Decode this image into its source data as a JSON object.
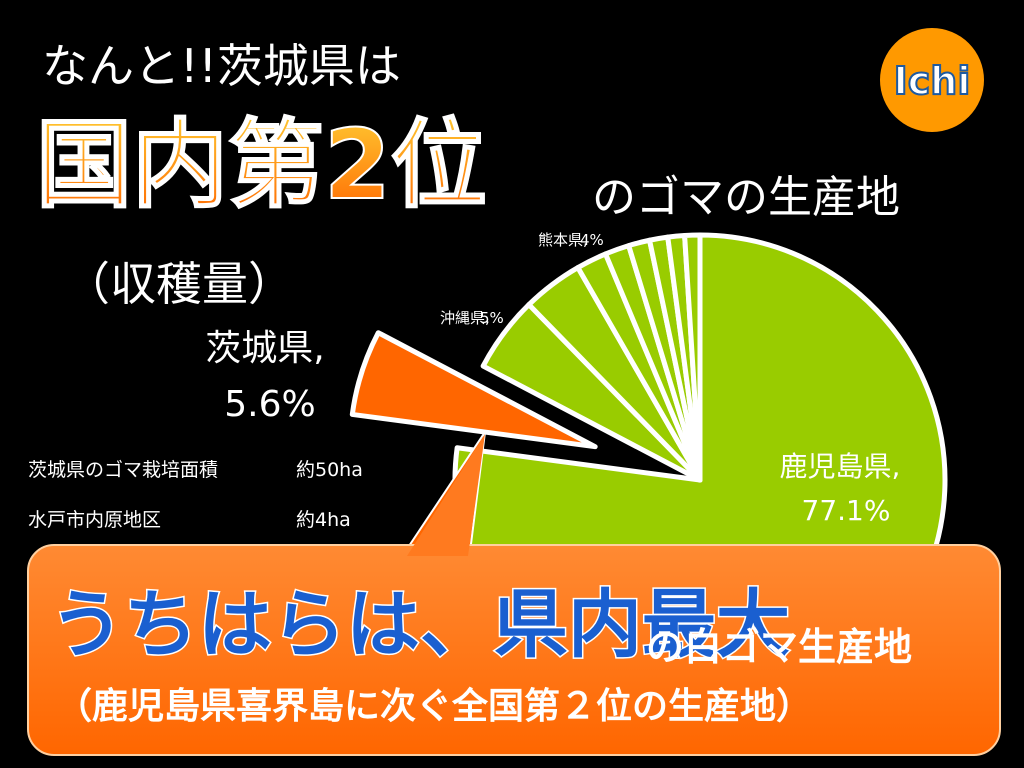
{
  "header": {
    "line1": "なんと!!茨城県は",
    "line2": "国内第2位",
    "line3": "のゴマの生産地",
    "line4": "（収穫量）"
  },
  "logo": "Ichi",
  "notes": [
    [
      "茨城県のゴマ栽培面積",
      "約50ha"
    ],
    [
      "水戸市内原地区",
      "約4ha"
    ]
  ],
  "callout": {
    "main": "うちはらは、県内最大",
    "tail": "の白ゴマ生産地",
    "sub": "（鹿児島県喜界島に次ぐ全国第２位の生産地）"
  },
  "chart_data": {
    "type": "pie",
    "categories": [
      "鹿児島県,",
      "茨城県,",
      "沖縄県,",
      "熊本県,",
      null,
      null,
      null,
      null,
      null,
      null
    ],
    "values": [
      77.1,
      5.6,
      5,
      4,
      2,
      1.6,
      1.4,
      1.2,
      1.1,
      1.0
    ],
    "value_labels": [
      "77.1%",
      "5.6%",
      "5%",
      "4%",
      null,
      null,
      null,
      null,
      null,
      null
    ],
    "colors": [
      "#99cc00",
      "#ff6600",
      "#99cc00",
      "#99cc00",
      "#99cc00",
      "#99cc00",
      "#99cc00",
      "#99cc00",
      "#99cc00",
      "#99cc00"
    ],
    "explode": [
      false,
      true,
      false,
      false,
      false,
      false,
      false,
      false,
      false,
      false
    ]
  }
}
